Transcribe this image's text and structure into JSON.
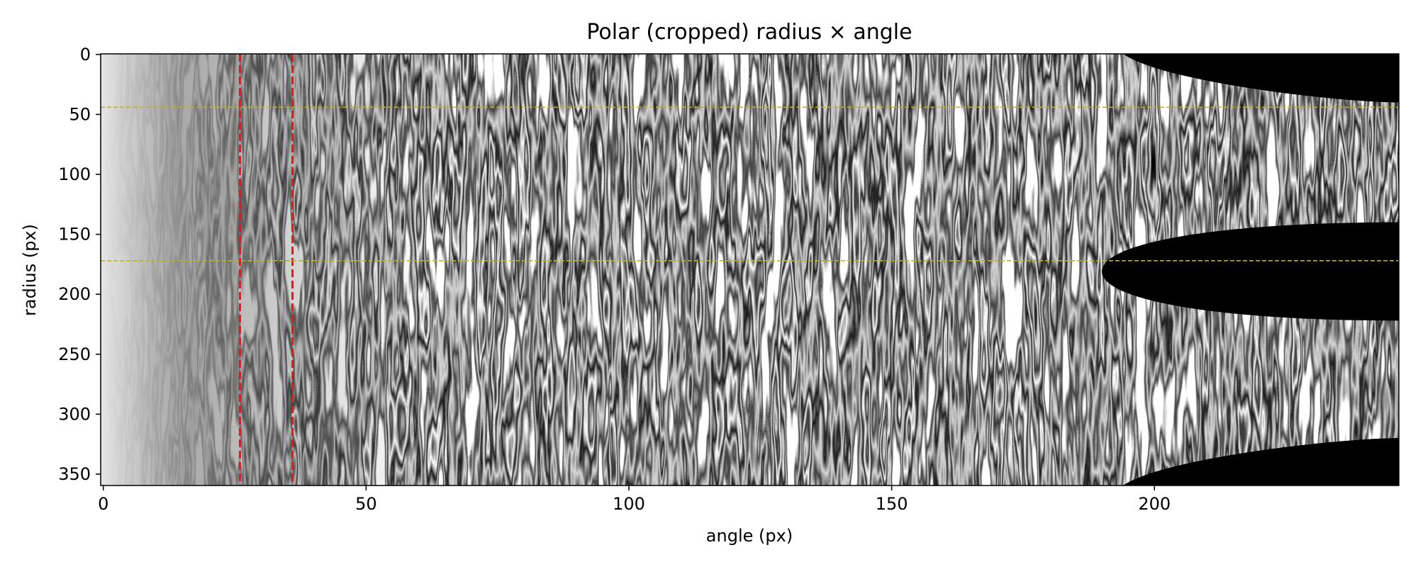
{
  "chart_data": {
    "type": "heatmap",
    "title": "Polar (cropped) radius × angle",
    "xlabel": "angle (px)",
    "ylabel": "radius (px)",
    "xlim": [
      -0.5,
      246.5
    ],
    "ylim": [
      359.5,
      -0.5
    ],
    "x_ticks": [
      0,
      50,
      100,
      150,
      200
    ],
    "y_ticks": [
      0,
      50,
      100,
      150,
      200,
      250,
      300,
      350
    ],
    "colormap": "gray",
    "vertical_lines": [
      {
        "x": 26,
        "color": "#e8161b",
        "style": "dashed"
      },
      {
        "x": 36,
        "color": "#e8161b",
        "style": "dashed"
      }
    ],
    "horizontal_lines": [
      {
        "y": 44,
        "color": "#c8b400",
        "style": "dashed"
      },
      {
        "y": 172,
        "color": "#c8b400",
        "style": "dashed"
      }
    ],
    "masked_regions": [
      {
        "description": "top-right black region",
        "x_from": 194,
        "y_from": 0,
        "y_to": 40
      },
      {
        "description": "middle-right black region",
        "x_from": 190,
        "y_from": 140,
        "y_to": 222
      },
      {
        "description": "bottom-right black region",
        "x_from": 194,
        "y_from": 320,
        "y_to": 359
      }
    ]
  }
}
